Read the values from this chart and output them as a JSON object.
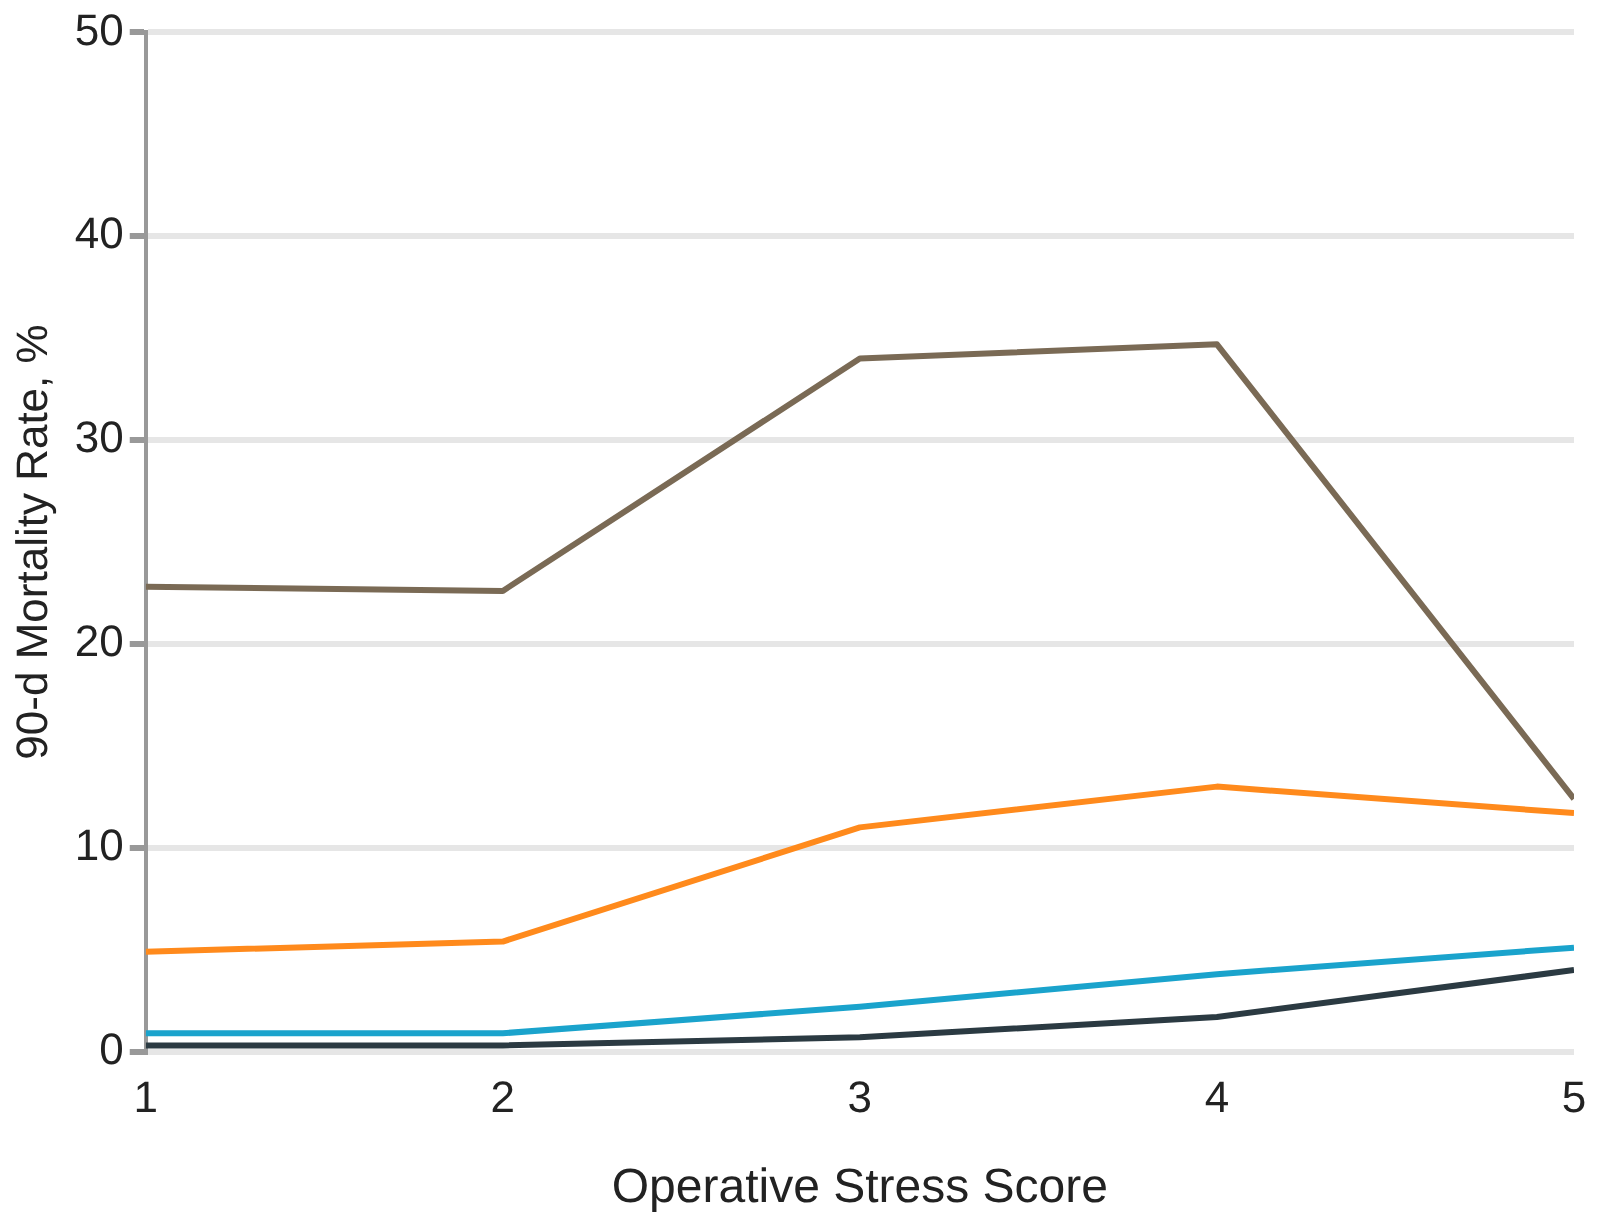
{
  "chart_data": {
    "type": "line",
    "xlabel": "Operative Stress Score",
    "ylabel": "90-d Mortality Rate, %",
    "x": [
      1,
      2,
      3,
      4,
      5
    ],
    "series": [
      {
        "color": "#7a6a55",
        "values": [
          22.8,
          22.6,
          34.0,
          34.7,
          12.4
        ]
      },
      {
        "color": "#ff8a1c",
        "values": [
          4.9,
          5.4,
          11.0,
          13.0,
          11.7
        ]
      },
      {
        "color": "#1aa3cc",
        "values": [
          0.9,
          0.9,
          2.2,
          3.8,
          5.1
        ]
      },
      {
        "color": "#2b3a42",
        "values": [
          0.3,
          0.3,
          0.7,
          1.7,
          4.0
        ]
      }
    ],
    "xlim": [
      1,
      5
    ],
    "xticks": [
      1,
      2,
      3,
      4,
      5
    ],
    "ylim": [
      0,
      50
    ],
    "yticks": [
      0,
      10,
      20,
      30,
      40,
      50
    ],
    "grid": "y",
    "legend": false,
    "marker": "none",
    "line_style": "solid"
  }
}
